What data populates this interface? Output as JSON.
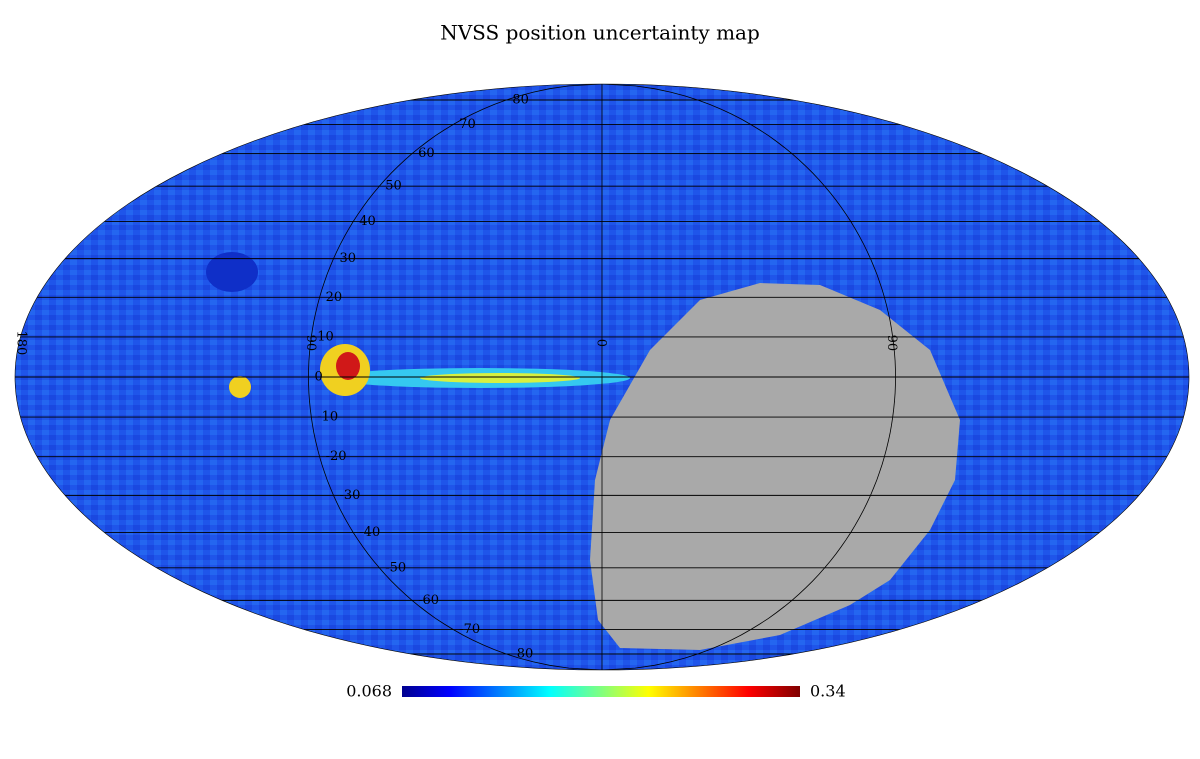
{
  "title": "NVSS position uncertainty map",
  "colorbar": {
    "min": 0.068,
    "max": 0.34
  },
  "graticule": {
    "parallels": [
      80,
      70,
      60,
      50,
      40,
      30,
      20,
      10,
      0,
      -10,
      -20,
      -30,
      -40,
      -50,
      -60,
      -70,
      -80
    ],
    "meridians": [
      {
        "value": -180,
        "label": "180"
      },
      {
        "value": -90,
        "label": "90"
      },
      0,
      90
    ]
  }
}
